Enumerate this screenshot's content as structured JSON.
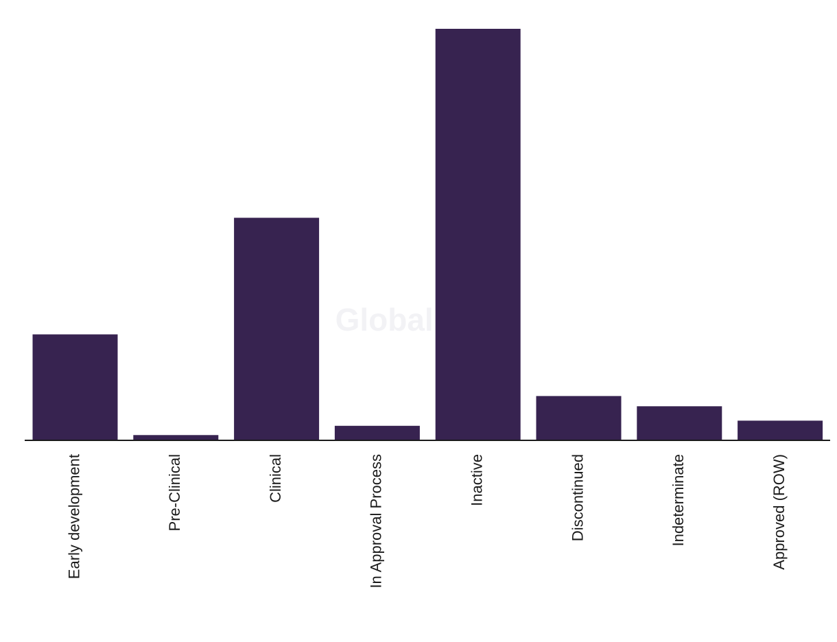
{
  "chart_data": {
    "type": "bar",
    "categories": [
      "Early development",
      "Pre-Clinical",
      "Clinical",
      "In Approval Process",
      "Inactive",
      "Discontinued",
      "Indeterminate",
      "Approved (ROW)"
    ],
    "values": [
      20.5,
      0.9,
      43.2,
      2.7,
      80.0,
      8.5,
      6.5,
      3.7
    ],
    "ylim": [
      0,
      80
    ],
    "y_axis_visible": false,
    "grid": false,
    "legend": "none",
    "bar_color": "#372350",
    "axis_color": "#1a1a1a",
    "tick_label_rotation": -90
  },
  "watermark": {
    "text": "GlobalData"
  }
}
